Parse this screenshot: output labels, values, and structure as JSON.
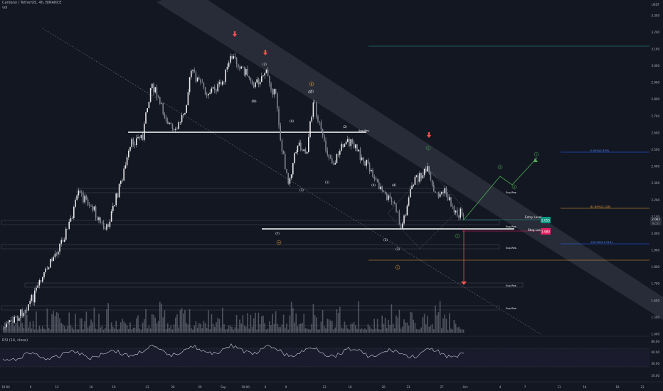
{
  "header": {
    "title": "Cardano / TetherUS, 4h, BINANCE",
    "vol_label": "vol",
    "rsi_label": "RSI (14, close)"
  },
  "axis": {
    "currency": "USDT",
    "y_ticks": [
      "3.300",
      "3.200",
      "3.100",
      "3.000",
      "2.900",
      "2.800",
      "2.700",
      "2.600",
      "2.500",
      "2.400",
      "2.300",
      "2.200",
      "2.100",
      "2.000",
      "1.900",
      "1.800",
      "1.700",
      "1.600",
      "1.500",
      "1.400"
    ],
    "price_tag_top": "2.063",
    "price_tag_bottom": "01:51",
    "rsi_ticks": [
      "80.00",
      "60.00",
      "40.00",
      "20.00"
    ],
    "x_ticks": [
      "19:00",
      "9",
      "12",
      "16",
      "19",
      "23",
      "26",
      "29",
      "Sep",
      "19:00",
      "6",
      "9",
      "13",
      "16",
      "20",
      "23",
      "27",
      "Oct",
      "4",
      "7",
      "11",
      "14",
      "18",
      "21"
    ]
  },
  "colors": {
    "bg": "#131722",
    "candle": "#d1d4dc",
    "white_line": "#ffffff",
    "red": "#ef5350",
    "green": "#4caf50",
    "orange": "#f0a030",
    "teal_line": "#26a69a",
    "blue_line": "#2962ff",
    "entry": "#089981",
    "stop": "#e91e63"
  },
  "labels": {
    "entry_level": "Entry Level",
    "entry_value": "2.055",
    "stop_loss": "Stop Loss",
    "stop_value": "1.980",
    "fib_0": "0.00%(2.459)",
    "fib_618": "61.80%(2.128)",
    "fib_100": "100.00%(1.919)",
    "sup_res": "Sup-Res.",
    "wave_labels": [
      "(1)",
      "(2)",
      "(3)",
      "(4)",
      "(5)",
      "(W)",
      "(X)",
      "(Y)",
      "(A)",
      "(B)",
      "(C)",
      "(D)",
      "(E)"
    ],
    "green_labels": [
      "1",
      "2",
      "3",
      "4",
      "5"
    ],
    "orange_labels": [
      "B",
      "A",
      "C"
    ]
  },
  "chart_data": {
    "type": "candlestick",
    "title": "Cardano / TetherUS, 4h, BINANCE",
    "ylim": [
      1.4,
      3.35
    ],
    "last_price": 2.063,
    "entry": 2.055,
    "stop_loss": 1.98,
    "fib_levels": [
      {
        "level": "0.00%",
        "price": 2.459
      },
      {
        "level": "61.80%",
        "price": 2.128
      },
      {
        "level": "100.00%",
        "price": 1.919
      }
    ],
    "rsi_range": [
      20,
      80
    ]
  }
}
